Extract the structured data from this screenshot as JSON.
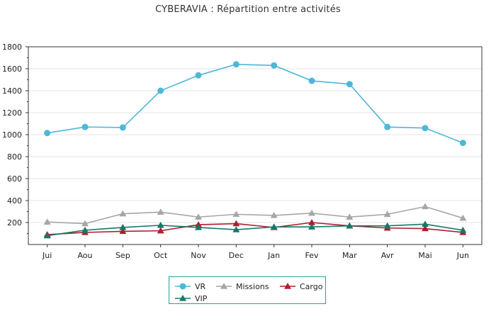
{
  "title": "CYBERAVIA : Répartition entre activités",
  "chart_data": {
    "type": "line",
    "title": "CYBERAVIA : Répartition entre activités",
    "xlabel": "",
    "ylabel": "",
    "categories": [
      "Jui",
      "Aou",
      "Sep",
      "Oct",
      "Nov",
      "Dec",
      "Jan",
      "Fev",
      "Mar",
      "Avr",
      "Mai",
      "Jun"
    ],
    "ylim": [
      0,
      1800
    ],
    "yticks": [
      200,
      400,
      600,
      800,
      1000,
      1200,
      1400,
      1600,
      1800
    ],
    "grid": true,
    "legend_position": "bottom",
    "series": [
      {
        "name": "VR",
        "color": "#4db8d8",
        "marker": "circle",
        "values": [
          1015,
          1070,
          1065,
          1400,
          1540,
          1640,
          1630,
          1490,
          1460,
          1070,
          1060,
          925
        ]
      },
      {
        "name": "Missions",
        "color": "#a6a6a6",
        "marker": "triangle",
        "values": [
          205,
          190,
          280,
          295,
          250,
          275,
          265,
          285,
          250,
          275,
          345,
          240
        ]
      },
      {
        "name": "Cargo",
        "color": "#b01c2e",
        "marker": "triangle",
        "values": [
          90,
          110,
          120,
          125,
          180,
          190,
          155,
          200,
          170,
          150,
          145,
          110
        ]
      },
      {
        "name": "VIP",
        "color": "#137a68",
        "marker": "triangle",
        "values": [
          80,
          130,
          155,
          175,
          155,
          135,
          160,
          160,
          170,
          170,
          185,
          130
        ]
      }
    ]
  }
}
